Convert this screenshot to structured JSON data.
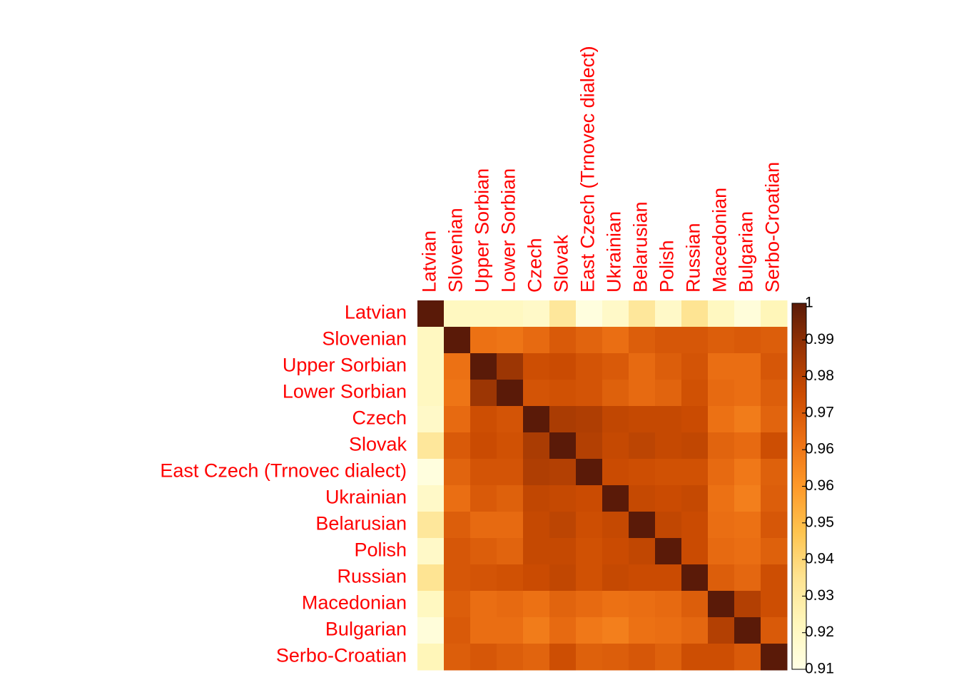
{
  "chart_data": {
    "type": "heatmap",
    "categories": [
      "Latvian",
      "Slovenian",
      "Upper Sorbian",
      "Lower Sorbian",
      "Czech",
      "Slovak",
      "East Czech (Trnovec dialect)",
      "Ukrainian",
      "Belarusian",
      "Polish",
      "Russian",
      "Macedonian",
      "Bulgarian",
      "Serbo-Croatian"
    ],
    "values": [
      [
        1,
        0.92,
        0.92,
        0.92,
        0.918,
        0.93,
        0.912,
        0.918,
        0.93,
        0.918,
        0.932,
        0.92,
        0.913,
        0.922
      ],
      [
        0.92,
        1,
        0.966,
        0.965,
        0.968,
        0.973,
        0.97,
        0.967,
        0.972,
        0.974,
        0.974,
        0.972,
        0.973,
        0.972
      ],
      [
        0.92,
        0.966,
        1,
        0.988,
        0.977,
        0.978,
        0.975,
        0.973,
        0.968,
        0.972,
        0.975,
        0.967,
        0.967,
        0.974
      ],
      [
        0.92,
        0.965,
        0.988,
        1,
        0.975,
        0.976,
        0.975,
        0.971,
        0.968,
        0.97,
        0.976,
        0.968,
        0.967,
        0.972
      ],
      [
        0.918,
        0.968,
        0.977,
        0.975,
        1,
        0.985,
        0.984,
        0.98,
        0.979,
        0.979,
        0.978,
        0.966,
        0.963,
        0.97
      ],
      [
        0.93,
        0.973,
        0.978,
        0.976,
        0.985,
        1,
        0.983,
        0.979,
        0.981,
        0.979,
        0.98,
        0.97,
        0.968,
        0.977
      ],
      [
        0.912,
        0.97,
        0.975,
        0.975,
        0.984,
        0.983,
        1,
        0.978,
        0.977,
        0.976,
        0.976,
        0.968,
        0.964,
        0.971
      ],
      [
        0.918,
        0.967,
        0.973,
        0.971,
        0.98,
        0.979,
        0.978,
        1,
        0.979,
        0.978,
        0.979,
        0.966,
        0.962,
        0.972
      ],
      [
        0.93,
        0.972,
        0.968,
        0.968,
        0.979,
        0.981,
        0.977,
        0.979,
        1,
        0.98,
        0.978,
        0.967,
        0.966,
        0.974
      ],
      [
        0.918,
        0.974,
        0.972,
        0.97,
        0.979,
        0.979,
        0.976,
        0.978,
        0.98,
        1,
        0.978,
        0.968,
        0.967,
        0.971
      ],
      [
        0.932,
        0.974,
        0.975,
        0.976,
        0.978,
        0.98,
        0.976,
        0.979,
        0.978,
        0.978,
        1,
        0.972,
        0.969,
        0.977
      ],
      [
        0.92,
        0.972,
        0.967,
        0.968,
        0.966,
        0.97,
        0.968,
        0.966,
        0.967,
        0.968,
        0.972,
        1,
        0.983,
        0.977
      ],
      [
        0.913,
        0.973,
        0.967,
        0.967,
        0.963,
        0.968,
        0.964,
        0.962,
        0.966,
        0.967,
        0.969,
        0.983,
        1,
        0.973
      ],
      [
        0.922,
        0.972,
        0.974,
        0.972,
        0.97,
        0.977,
        0.971,
        0.972,
        0.974,
        0.971,
        0.977,
        0.977,
        0.973,
        1
      ]
    ],
    "zlim": [
      0.91,
      1
    ],
    "zticks": [
      1,
      {
        "value": 0.991,
        "label": "0.99"
      },
      {
        "value": 0.982,
        "label": "0.98"
      },
      {
        "value": 0.973,
        "label": "0.97"
      },
      {
        "value": 0.964,
        "label": "0.96"
      },
      {
        "value": 0.955,
        "label": "0.96"
      },
      {
        "value": 0.946,
        "label": "0.95"
      },
      {
        "value": 0.937,
        "label": "0.94"
      },
      {
        "value": 0.928,
        "label": "0.93"
      },
      {
        "value": 0.919,
        "label": "0.92"
      },
      0.91
    ],
    "colorscale": [
      "#ffffe5",
      "#fff7bc",
      "#fee391",
      "#fec44f",
      "#fe9929",
      "#ec7014",
      "#cc4c02",
      "#993404",
      "#5a1a08"
    ],
    "label_color": "#ff0000"
  }
}
